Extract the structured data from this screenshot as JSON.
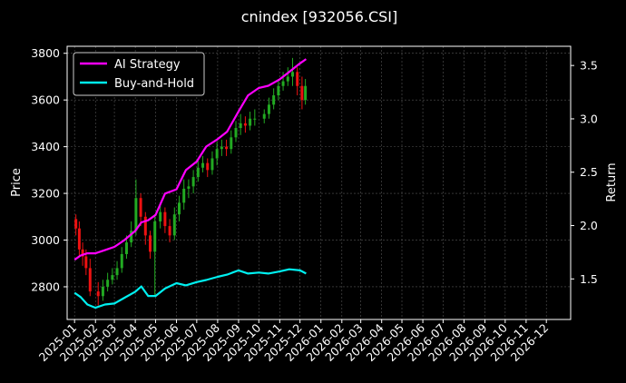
{
  "chart_data": {
    "type": "line",
    "title": "cnindex [932056.CSI]",
    "xlabel": "",
    "ylabel_left": "Price",
    "ylabel_right": "Return",
    "x_tick_labels": [
      "2025-01",
      "2025-02",
      "2025-03",
      "2025-04",
      "2025-05",
      "2025-06",
      "2025-07",
      "2025-08",
      "2025-09",
      "2025-10",
      "2025-11",
      "2025-12",
      "2026-01",
      "2026-02",
      "2026-03",
      "2026-04",
      "2026-05",
      "2026-06",
      "2026-07",
      "2026-08",
      "2026-09",
      "2026-10",
      "2026-11",
      "2026-12"
    ],
    "y_left": {
      "lim": [
        2660,
        3830
      ],
      "ticks": [
        2800,
        3000,
        3200,
        3400,
        3600,
        3800
      ]
    },
    "y_right": {
      "lim": [
        1.12,
        3.68
      ],
      "ticks": [
        1.5,
        2.0,
        2.5,
        3.0,
        3.5
      ],
      "tick_labels": [
        "1.5",
        "2.0",
        "2.5",
        "3.0",
        "3.5"
      ]
    },
    "grid": true,
    "legend": {
      "location": "top-left",
      "entries": [
        "AI Strategy",
        "Buy-and-Hold"
      ]
    },
    "colors": {
      "ai_strategy": "#ff00ff",
      "buy_hold": "#00f0f0",
      "candle_up": "#22aa22",
      "candle_down": "#ee1111",
      "background": "#000000",
      "grid": "#555555"
    },
    "series": [
      {
        "name": "AI Strategy",
        "axis": "right",
        "x": [
          "2025-01-01",
          "2025-01-10",
          "2025-01-20",
          "2025-02-01",
          "2025-02-15",
          "2025-03-01",
          "2025-03-15",
          "2025-04-01",
          "2025-04-10",
          "2025-04-20",
          "2025-05-01",
          "2025-05-15",
          "2025-06-01",
          "2025-06-15",
          "2025-07-01",
          "2025-07-15",
          "2025-08-01",
          "2025-08-15",
          "2025-09-01",
          "2025-09-15",
          "2025-10-01",
          "2025-10-15",
          "2025-11-01",
          "2025-11-15",
          "2025-12-01",
          "2025-12-10"
        ],
        "values": [
          1.68,
          1.72,
          1.74,
          1.74,
          1.77,
          1.8,
          1.86,
          1.95,
          2.03,
          2.05,
          2.1,
          2.3,
          2.34,
          2.52,
          2.6,
          2.74,
          2.81,
          2.88,
          3.07,
          3.22,
          3.29,
          3.31,
          3.37,
          3.44,
          3.52,
          3.56
        ]
      },
      {
        "name": "Buy-and-Hold",
        "axis": "right",
        "x": [
          "2025-01-01",
          "2025-01-10",
          "2025-01-20",
          "2025-02-01",
          "2025-02-15",
          "2025-03-01",
          "2025-03-15",
          "2025-04-01",
          "2025-04-10",
          "2025-04-20",
          "2025-05-01",
          "2025-05-15",
          "2025-06-01",
          "2025-06-15",
          "2025-07-01",
          "2025-07-15",
          "2025-08-01",
          "2025-08-15",
          "2025-09-01",
          "2025-09-15",
          "2025-10-01",
          "2025-10-15",
          "2025-11-01",
          "2025-11-15",
          "2025-12-01",
          "2025-12-10"
        ],
        "values": [
          1.37,
          1.33,
          1.26,
          1.23,
          1.26,
          1.27,
          1.32,
          1.38,
          1.43,
          1.34,
          1.34,
          1.41,
          1.46,
          1.44,
          1.47,
          1.49,
          1.52,
          1.54,
          1.58,
          1.55,
          1.56,
          1.55,
          1.57,
          1.59,
          1.58,
          1.55
        ]
      }
    ],
    "candlestick": {
      "name": "Price",
      "axis": "left",
      "x": [
        "2025-01-03",
        "2025-01-08",
        "2025-01-13",
        "2025-01-18",
        "2025-01-24",
        "2025-02-05",
        "2025-02-12",
        "2025-02-19",
        "2025-02-26",
        "2025-03-05",
        "2025-03-12",
        "2025-03-19",
        "2025-03-26",
        "2025-04-02",
        "2025-04-09",
        "2025-04-16",
        "2025-04-23",
        "2025-04-30",
        "2025-05-08",
        "2025-05-15",
        "2025-05-22",
        "2025-05-29",
        "2025-06-05",
        "2025-06-12",
        "2025-06-19",
        "2025-06-26",
        "2025-07-03",
        "2025-07-10",
        "2025-07-17",
        "2025-07-24",
        "2025-07-31",
        "2025-08-07",
        "2025-08-14",
        "2025-08-21",
        "2025-08-28",
        "2025-09-04",
        "2025-09-11",
        "2025-09-18",
        "2025-09-25",
        "2025-10-09",
        "2025-10-16",
        "2025-10-23",
        "2025-10-30",
        "2025-11-06",
        "2025-11-13",
        "2025-11-20",
        "2025-11-27",
        "2025-12-04",
        "2025-12-09"
      ],
      "open": [
        3090,
        3050,
        2960,
        2930,
        2880,
        2780,
        2760,
        2800,
        2830,
        2850,
        2880,
        2940,
        2990,
        3040,
        3180,
        3100,
        3020,
        2950,
        3080,
        3120,
        3060,
        3020,
        3110,
        3160,
        3220,
        3230,
        3270,
        3310,
        3330,
        3300,
        3350,
        3390,
        3400,
        3390,
        3440,
        3480,
        3500,
        3490,
        3520,
        3520,
        3540,
        3580,
        3620,
        3660,
        3680,
        3700,
        3720,
        3660,
        3600
      ],
      "close": [
        3050,
        2960,
        2930,
        2880,
        2780,
        2760,
        2800,
        2830,
        2850,
        2880,
        2940,
        2990,
        3040,
        3180,
        3100,
        3020,
        2950,
        3080,
        3120,
        3060,
        3020,
        3110,
        3160,
        3220,
        3230,
        3270,
        3310,
        3330,
        3300,
        3350,
        3390,
        3400,
        3390,
        3440,
        3480,
        3500,
        3490,
        3520,
        3520,
        3540,
        3580,
        3620,
        3660,
        3680,
        3700,
        3720,
        3660,
        3600,
        3660
      ],
      "high": [
        3110,
        3080,
        2990,
        2960,
        2920,
        2820,
        2830,
        2860,
        2880,
        2910,
        2970,
        3020,
        3080,
        3260,
        3200,
        3120,
        3040,
        3110,
        3160,
        3140,
        3090,
        3140,
        3190,
        3260,
        3260,
        3300,
        3340,
        3360,
        3350,
        3380,
        3420,
        3430,
        3430,
        3470,
        3510,
        3540,
        3530,
        3550,
        3560,
        3560,
        3610,
        3650,
        3690,
        3720,
        3740,
        3780,
        3740,
        3700,
        3690
      ],
      "low": [
        3020,
        2930,
        2890,
        2850,
        2760,
        2720,
        2740,
        2780,
        2810,
        2830,
        2860,
        2920,
        2970,
        3020,
        3060,
        2980,
        2920,
        2760,
        3050,
        3030,
        2990,
        3000,
        3080,
        3130,
        3180,
        3200,
        3250,
        3290,
        3270,
        3280,
        3320,
        3360,
        3360,
        3370,
        3420,
        3450,
        3460,
        3470,
        3490,
        3500,
        3520,
        3560,
        3600,
        3640,
        3660,
        3660,
        3620,
        3560,
        3580
      ]
    }
  }
}
